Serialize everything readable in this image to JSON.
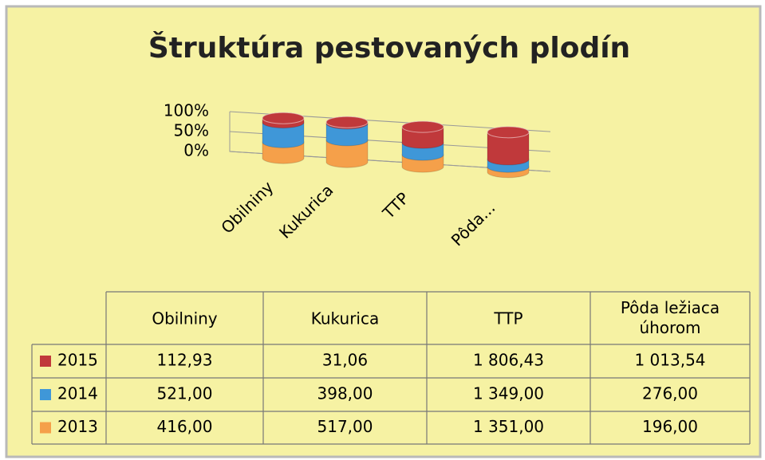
{
  "chart_data": {
    "type": "bar",
    "stacked": "percent",
    "title": "Štruktúra pestovaných plodín",
    "categories": [
      "Obilniny",
      "Kukurica",
      "TTP",
      "Pôda ležiaca úhorom"
    ],
    "x_tick_labels": [
      "Obilniny",
      "Kukurica",
      "TTP",
      "Pôda..."
    ],
    "ylim": [
      0,
      100
    ],
    "yticks": [
      {
        "value": 0,
        "label": "0%"
      },
      {
        "value": 50,
        "label": "50%"
      },
      {
        "value": 100,
        "label": "100%"
      }
    ],
    "grid": true,
    "series": [
      {
        "name": "2015",
        "color": "#c0393b",
        "values": [
          112.93,
          31.06,
          1806.43,
          1013.54
        ],
        "value_labels": [
          "112,93",
          "31,06",
          "1 806,43",
          "1 013,54"
        ]
      },
      {
        "name": "2014",
        "color": "#3f97d8",
        "values": [
          521.0,
          398.0,
          1349.0,
          276.0
        ],
        "value_labels": [
          "521,00",
          "398,00",
          "1 349,00",
          "276,00"
        ]
      },
      {
        "name": "2013",
        "color": "#f5a04a",
        "values": [
          416.0,
          517.0,
          1351.0,
          196.0
        ],
        "value_labels": [
          "416,00",
          "517,00",
          "1 351,00",
          "196,00"
        ]
      }
    ]
  }
}
